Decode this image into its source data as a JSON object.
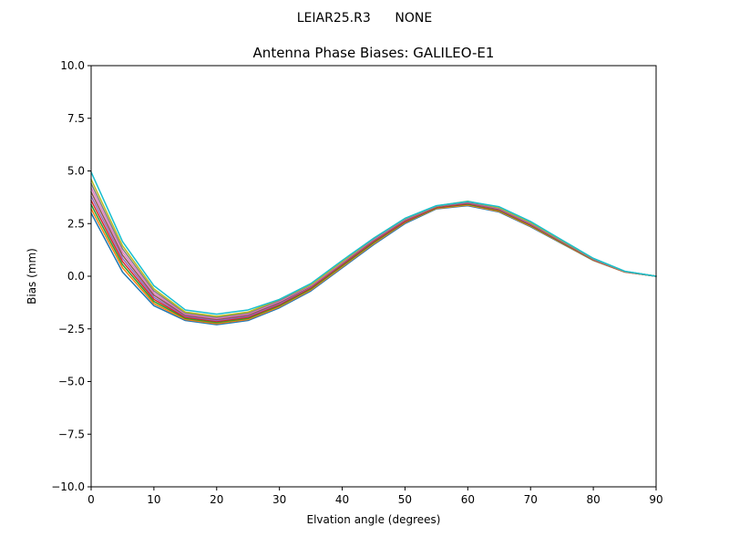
{
  "suptitle": "LEIAR25.R3      NONE",
  "chart_data": {
    "type": "line",
    "title": "Antenna Phase Biases: GALILEO-E1",
    "xlabel": "Elvation angle (degrees)",
    "ylabel": "Bias (mm)",
    "xlim": [
      0,
      90
    ],
    "ylim": [
      -10,
      10
    ],
    "xticks": [
      0,
      10,
      20,
      30,
      40,
      50,
      60,
      70,
      80,
      90
    ],
    "xtick_labels": [
      "0",
      "10",
      "20",
      "30",
      "40",
      "50",
      "60",
      "70",
      "80",
      "90"
    ],
    "yticks": [
      10,
      7.5,
      5,
      2.5,
      0,
      -2.5,
      -5,
      -7.5,
      -10
    ],
    "ytick_labels": [
      "10.0",
      "7.5",
      "5.0",
      "2.5",
      "0.0",
      "−2.5",
      "−5.0",
      "−7.5",
      "−10.0"
    ],
    "grid": false,
    "legend": "none",
    "x": [
      0,
      5,
      10,
      15,
      20,
      25,
      30,
      35,
      40,
      45,
      50,
      55,
      60,
      65,
      70,
      75,
      80,
      85,
      90
    ],
    "series": [
      {
        "color": "#1f77b4",
        "values": [
          3.0,
          0.2,
          -1.4,
          -2.1,
          -2.3,
          -2.1,
          -1.5,
          -0.7,
          0.4,
          1.5,
          2.5,
          3.2,
          3.35,
          3.05,
          2.35,
          1.55,
          0.75,
          0.2,
          0.0
        ]
      },
      {
        "color": "#ff7f0e",
        "values": [
          3.2,
          0.4,
          -1.3,
          -2.05,
          -2.25,
          -2.05,
          -1.45,
          -0.65,
          0.45,
          1.55,
          2.55,
          3.22,
          3.38,
          3.08,
          2.38,
          1.57,
          0.76,
          0.2,
          0.0
        ]
      },
      {
        "color": "#2ca02c",
        "values": [
          3.4,
          0.55,
          -1.2,
          -2.0,
          -2.2,
          -2.0,
          -1.4,
          -0.6,
          0.5,
          1.6,
          2.58,
          3.25,
          3.42,
          3.12,
          2.42,
          1.6,
          0.78,
          0.21,
          0.0
        ]
      },
      {
        "color": "#d62728",
        "values": [
          3.6,
          0.7,
          -1.1,
          -1.95,
          -2.15,
          -1.95,
          -1.35,
          -0.55,
          0.55,
          1.65,
          2.6,
          3.27,
          3.45,
          3.15,
          2.45,
          1.62,
          0.79,
          0.21,
          0.0
        ]
      },
      {
        "color": "#9467bd",
        "values": [
          3.8,
          0.85,
          -1.0,
          -1.9,
          -2.1,
          -1.9,
          -1.3,
          -0.5,
          0.6,
          1.7,
          2.65,
          3.3,
          3.48,
          3.18,
          2.48,
          1.64,
          0.8,
          0.22,
          0.0
        ]
      },
      {
        "color": "#8c564b",
        "values": [
          4.0,
          1.0,
          -0.9,
          -1.85,
          -2.05,
          -1.85,
          -1.25,
          -0.47,
          0.62,
          1.72,
          2.67,
          3.3,
          3.5,
          3.2,
          2.5,
          1.65,
          0.81,
          0.22,
          0.0
        ]
      },
      {
        "color": "#e377c2",
        "values": [
          4.2,
          1.15,
          -0.8,
          -1.8,
          -2.0,
          -1.8,
          -1.2,
          -0.45,
          0.65,
          1.75,
          2.7,
          3.32,
          3.52,
          3.22,
          2.52,
          1.67,
          0.82,
          0.22,
          0.0
        ]
      },
      {
        "color": "#7f7f7f",
        "values": [
          4.4,
          1.3,
          -0.7,
          -1.75,
          -1.95,
          -1.75,
          -1.15,
          -0.42,
          0.68,
          1.78,
          2.72,
          3.33,
          3.54,
          3.24,
          2.54,
          1.68,
          0.83,
          0.23,
          0.0
        ]
      },
      {
        "color": "#bcbd22",
        "values": [
          4.6,
          1.45,
          -0.6,
          -1.7,
          -1.9,
          -1.7,
          -1.1,
          -0.4,
          0.7,
          1.8,
          2.74,
          3.34,
          3.56,
          3.26,
          2.56,
          1.7,
          0.84,
          0.23,
          0.0
        ]
      },
      {
        "color": "#17becf",
        "values": [
          4.95,
          1.65,
          -0.45,
          -1.6,
          -1.8,
          -1.6,
          -1.1,
          -0.35,
          0.75,
          1.8,
          2.75,
          3.35,
          3.55,
          3.3,
          2.6,
          1.72,
          0.85,
          0.24,
          0.0
        ]
      }
    ]
  }
}
